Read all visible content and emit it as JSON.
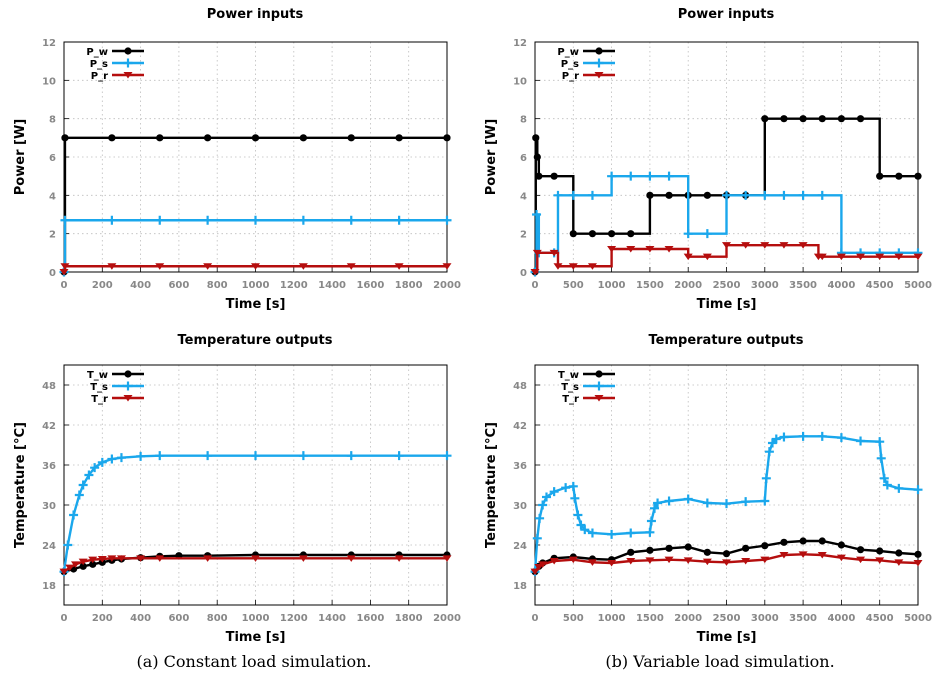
{
  "colors": {
    "w": "#000000",
    "s": "#1aa7ec",
    "r": "#b50e0e",
    "grid": "#bdbdbd"
  },
  "captions": {
    "a": "(a) Constant load simulation.",
    "b": "(b) Variable load simulation."
  },
  "chart_data": [
    {
      "id": "a-power",
      "type": "line",
      "title": "Power inputs",
      "xlabel": "Time [s]",
      "ylabel": "Power [W]",
      "xlim": [
        0,
        2000
      ],
      "ylim": [
        0,
        12
      ],
      "xticks": [
        0,
        200,
        400,
        600,
        800,
        1000,
        1200,
        1400,
        1600,
        1800,
        2000
      ],
      "yticks": [
        0,
        2,
        4,
        6,
        8,
        10,
        12
      ],
      "grid": true,
      "legend_position": "top-left",
      "series": [
        {
          "name": "P_w",
          "color_key": "w",
          "marker": "circle",
          "step": true,
          "x": [
            0,
            5,
            250,
            500,
            750,
            1000,
            1250,
            1500,
            1750,
            2000
          ],
          "y": [
            0,
            7,
            7,
            7,
            7,
            7,
            7,
            7,
            7,
            7
          ]
        },
        {
          "name": "P_s",
          "color_key": "s",
          "marker": "plus",
          "step": true,
          "x": [
            0,
            5,
            250,
            500,
            750,
            1000,
            1250,
            1500,
            1750,
            2000
          ],
          "y": [
            0,
            2.7,
            2.7,
            2.7,
            2.7,
            2.7,
            2.7,
            2.7,
            2.7,
            2.7
          ]
        },
        {
          "name": "P_r",
          "color_key": "r",
          "marker": "triangle",
          "step": true,
          "x": [
            0,
            5,
            250,
            500,
            750,
            1000,
            1250,
            1500,
            1750,
            2000
          ],
          "y": [
            0,
            0.3,
            0.3,
            0.3,
            0.3,
            0.3,
            0.3,
            0.3,
            0.3,
            0.3
          ]
        }
      ]
    },
    {
      "id": "b-power",
      "type": "line",
      "title": "Power inputs",
      "xlabel": "Time [s]",
      "ylabel": "Power [W]",
      "xlim": [
        0,
        5000
      ],
      "ylim": [
        0,
        12
      ],
      "xticks": [
        0,
        500,
        1000,
        1500,
        2000,
        2500,
        3000,
        3500,
        4000,
        4500,
        5000
      ],
      "yticks": [
        0,
        2,
        4,
        6,
        8,
        10,
        12
      ],
      "grid": true,
      "legend_position": "top-left",
      "series": [
        {
          "name": "P_w",
          "color_key": "w",
          "marker": "circle",
          "step": true,
          "x": [
            0,
            10,
            30,
            50,
            250,
            500,
            750,
            1000,
            1250,
            1500,
            1750,
            2000,
            2250,
            2500,
            2750,
            3000,
            3250,
            3500,
            3750,
            4000,
            4250,
            4500,
            4750,
            5000
          ],
          "y": [
            0,
            7,
            6,
            5,
            5,
            2,
            2,
            2,
            2,
            4,
            4,
            4,
            4,
            4,
            4,
            8,
            8,
            8,
            8,
            8,
            8,
            5,
            5,
            5
          ]
        },
        {
          "name": "P_s",
          "color_key": "s",
          "marker": "plus",
          "step": true,
          "x": [
            0,
            20,
            50,
            250,
            300,
            500,
            750,
            1000,
            1250,
            1500,
            1750,
            2000,
            2250,
            2500,
            2750,
            3000,
            3250,
            3500,
            3750,
            4000,
            4250,
            4500,
            4750,
            5000
          ],
          "y": [
            0,
            3,
            1,
            1,
            4,
            4,
            4,
            5,
            5,
            5,
            5,
            2,
            2,
            4,
            4,
            4,
            4,
            4,
            4,
            1,
            1,
            1,
            1,
            1
          ]
        },
        {
          "name": "P_r",
          "color_key": "r",
          "marker": "triangle",
          "step": true,
          "x": [
            0,
            30,
            250,
            300,
            500,
            750,
            1000,
            1250,
            1500,
            1750,
            2000,
            2250,
            2500,
            2750,
            3000,
            3250,
            3500,
            3700,
            3750,
            4000,
            4250,
            4500,
            4750,
            5000
          ],
          "y": [
            0,
            1,
            1,
            0.3,
            0.3,
            0.3,
            1.2,
            1.2,
            1.2,
            1.2,
            0.8,
            0.8,
            1.4,
            1.4,
            1.4,
            1.4,
            1.4,
            0.8,
            0.8,
            0.8,
            0.8,
            0.8,
            0.8,
            0.8
          ]
        }
      ]
    },
    {
      "id": "a-temp",
      "type": "line",
      "title": "Temperature outputs",
      "xlabel": "Time [s]",
      "ylabel": "Temperature [°C]",
      "xlim": [
        0,
        2000
      ],
      "ylim": [
        15,
        51
      ],
      "xticks": [
        0,
        200,
        400,
        600,
        800,
        1000,
        1200,
        1400,
        1600,
        1800,
        2000
      ],
      "yticks": [
        18,
        24,
        30,
        36,
        42,
        48
      ],
      "grid": true,
      "legend_position": "top-left",
      "series": [
        {
          "name": "T_w",
          "color_key": "w",
          "marker": "circle",
          "x": [
            0,
            50,
            100,
            150,
            200,
            250,
            300,
            400,
            500,
            600,
            750,
            1000,
            1250,
            1500,
            1750,
            2000
          ],
          "y": [
            20,
            20.4,
            20.8,
            21.1,
            21.4,
            21.7,
            21.9,
            22.1,
            22.3,
            22.4,
            22.4,
            22.5,
            22.5,
            22.5,
            22.5,
            22.5
          ]
        },
        {
          "name": "T_s",
          "color_key": "s",
          "marker": "plus",
          "x": [
            0,
            20,
            50,
            80,
            100,
            130,
            160,
            200,
            250,
            300,
            400,
            500,
            750,
            1000,
            1250,
            1500,
            1750,
            2000
          ],
          "y": [
            20,
            24,
            28.5,
            31.5,
            33,
            34.5,
            35.6,
            36.4,
            36.9,
            37.1,
            37.3,
            37.4,
            37.4,
            37.4,
            37.4,
            37.4,
            37.4,
            37.4
          ]
        },
        {
          "name": "T_r",
          "color_key": "r",
          "marker": "triangle",
          "x": [
            0,
            30,
            60,
            100,
            150,
            200,
            250,
            300,
            400,
            500,
            750,
            1000,
            1250,
            1500,
            1750,
            2000
          ],
          "y": [
            20,
            20.6,
            21.1,
            21.5,
            21.8,
            21.9,
            22.0,
            22.0,
            22.0,
            22.0,
            22.0,
            22.0,
            22.0,
            22.0,
            22.0,
            22.0
          ]
        }
      ]
    },
    {
      "id": "b-temp",
      "type": "line",
      "title": "Temperature outputs",
      "xlabel": "Time [s]",
      "ylabel": "Temperature [°C]",
      "xlim": [
        0,
        5000
      ],
      "ylim": [
        15,
        51
      ],
      "xticks": [
        0,
        500,
        1000,
        1500,
        2000,
        2500,
        3000,
        3500,
        4000,
        4500,
        5000
      ],
      "yticks": [
        18,
        24,
        30,
        36,
        42,
        48
      ],
      "grid": true,
      "legend_position": "top-left",
      "series": [
        {
          "name": "T_w",
          "color_key": "w",
          "marker": "circle",
          "x": [
            0,
            50,
            100,
            250,
            500,
            750,
            1000,
            1250,
            1500,
            1750,
            2000,
            2250,
            2500,
            2750,
            3000,
            3250,
            3500,
            3750,
            4000,
            4250,
            4500,
            4750,
            5000
          ],
          "y": [
            20,
            20.8,
            21.3,
            22.0,
            22.2,
            21.9,
            21.8,
            22.9,
            23.2,
            23.5,
            23.7,
            22.9,
            22.7,
            23.5,
            23.9,
            24.4,
            24.6,
            24.6,
            24.0,
            23.3,
            23.1,
            22.8,
            22.6
          ]
        },
        {
          "name": "T_s",
          "color_key": "s",
          "marker": "plus",
          "x": [
            0,
            30,
            60,
            100,
            150,
            250,
            400,
            500,
            520,
            560,
            600,
            650,
            750,
            1000,
            1250,
            1500,
            1520,
            1560,
            1600,
            1750,
            2000,
            2250,
            2500,
            2750,
            3000,
            3020,
            3060,
            3100,
            3150,
            3250,
            3500,
            3750,
            4000,
            4250,
            4500,
            4520,
            4560,
            4600,
            4750,
            5000
          ],
          "y": [
            20,
            25,
            28,
            30,
            31.2,
            32.0,
            32.6,
            32.8,
            31,
            28.5,
            27,
            26.3,
            25.8,
            25.6,
            25.8,
            25.9,
            27.6,
            29.5,
            30.3,
            30.6,
            30.9,
            30.3,
            30.2,
            30.5,
            30.6,
            34,
            38,
            39.3,
            39.9,
            40.2,
            40.3,
            40.3,
            40.1,
            39.6,
            39.5,
            37,
            34,
            33,
            32.5,
            32.3
          ]
        },
        {
          "name": "T_r",
          "color_key": "r",
          "marker": "triangle",
          "x": [
            0,
            50,
            100,
            250,
            500,
            750,
            1000,
            1250,
            1500,
            1750,
            2000,
            2250,
            2500,
            2750,
            3000,
            3250,
            3500,
            3750,
            4000,
            4250,
            4500,
            4750,
            5000
          ],
          "y": [
            20,
            20.7,
            21.1,
            21.6,
            21.8,
            21.4,
            21.3,
            21.6,
            21.7,
            21.8,
            21.7,
            21.5,
            21.4,
            21.6,
            21.8,
            22.5,
            22.6,
            22.5,
            22.1,
            21.8,
            21.7,
            21.4,
            21.3
          ]
        }
      ]
    }
  ]
}
